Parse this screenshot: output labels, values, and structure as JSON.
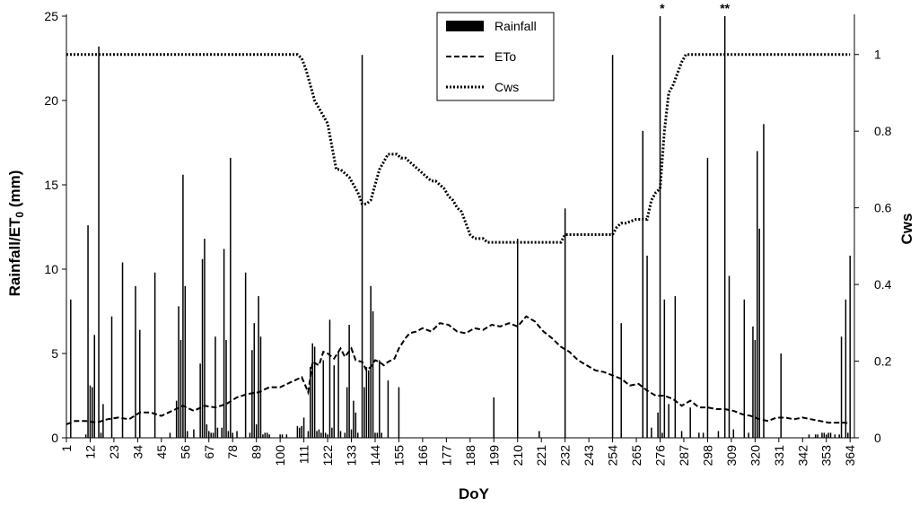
{
  "chart_data": {
    "type": "bar+line",
    "xlabel": "DoY",
    "ylabel_left": "Rainfall/ET",
    "ylabel_left_sub": "0",
    "ylabel_left_unit": " (mm)",
    "ylabel_right": "Cws",
    "xlim": [
      1,
      366
    ],
    "ylim_left": [
      0,
      25
    ],
    "ylim_right": [
      0,
      1.1
    ],
    "x_ticks": [
      "1",
      "12",
      "23",
      "34",
      "45",
      "56",
      "67",
      "78",
      "89",
      "100",
      "111",
      "122",
      "133",
      "144",
      "155",
      "166",
      "177",
      "188",
      "199",
      "210",
      "221",
      "232",
      "243",
      "254",
      "265",
      "276",
      "287",
      "298",
      "309",
      "320",
      "331",
      "342",
      "353",
      "364"
    ],
    "y_left_ticks": [
      "0",
      "5",
      "10",
      "15",
      "20",
      "25"
    ],
    "y_right_ticks": [
      "0",
      "0.2",
      "0.4",
      "0.6",
      "0.8",
      "1"
    ],
    "legend_position": "top-center",
    "legend": [
      "Rainfall",
      "ETo",
      "Cws"
    ],
    "annotations": [
      {
        "x": 277,
        "label": "*"
      },
      {
        "x": 306,
        "label": "**"
      }
    ],
    "rainfall": {
      "name": "Rainfall",
      "x": [
        3,
        10,
        11,
        12,
        13,
        14,
        16,
        17,
        18,
        22,
        27,
        33,
        35,
        42,
        49,
        52,
        53,
        54,
        55,
        56,
        57,
        60,
        63,
        64,
        65,
        66,
        67,
        68,
        69,
        70,
        71,
        73,
        74,
        75,
        76,
        77,
        78,
        80,
        84,
        86,
        87,
        88,
        89,
        90,
        91,
        92,
        93,
        94,
        95,
        100,
        101,
        103,
        108,
        109,
        110,
        111,
        113,
        114,
        115,
        116,
        117,
        118,
        119,
        120,
        121,
        122,
        123,
        124,
        125,
        127,
        128,
        130,
        131,
        132,
        133,
        134,
        135,
        136,
        138,
        139,
        140,
        141,
        142,
        143,
        144,
        145,
        146,
        147,
        150,
        155,
        199,
        210,
        220,
        232,
        254,
        258,
        268,
        270,
        272,
        275,
        276,
        277,
        278,
        280,
        283,
        286,
        290,
        294,
        296,
        298,
        303,
        306,
        308,
        310,
        315,
        317,
        319,
        320,
        321,
        322,
        324,
        332,
        345,
        348,
        349,
        351,
        352,
        353,
        354,
        355,
        357,
        359,
        360,
        362,
        363,
        364
      ],
      "values": [
        8.2,
        0.2,
        12.6,
        3.1,
        3.0,
        6.1,
        23.2,
        0.3,
        2.0,
        7.2,
        10.4,
        9.0,
        6.4,
        9.8,
        0.3,
        2.2,
        7.8,
        5.8,
        15.6,
        9.0,
        0.4,
        0.5,
        4.4,
        10.6,
        11.8,
        0.8,
        0.4,
        0.3,
        0.3,
        6.0,
        0.6,
        0.6,
        11.2,
        5.8,
        0.4,
        16.6,
        0.3,
        0.4,
        9.8,
        0.3,
        5.2,
        6.8,
        0.8,
        8.4,
        6.0,
        0.2,
        0.3,
        0.3,
        0.2,
        0.2,
        0.2,
        0.2,
        0.7,
        0.6,
        0.7,
        1.2,
        0.4,
        4.2,
        5.6,
        5.4,
        0.4,
        0.5,
        0.3,
        4.6,
        0.3,
        0.2,
        7.0,
        0.6,
        4.3,
        5.1,
        0.4,
        0.3,
        3.0,
        6.7,
        0.5,
        2.2,
        1.5,
        0.3,
        22.7,
        3.0,
        4.2,
        4.0,
        9.0,
        7.5,
        0.3,
        0.3,
        4.6,
        0.3,
        3.4,
        3.0,
        2.4,
        11.8,
        0.4,
        13.6,
        22.7,
        6.8,
        18.2,
        10.8,
        0.6,
        1.5,
        25.0,
        0.3,
        8.2,
        2.0,
        8.4,
        0.4,
        1.8,
        0.3,
        0.3,
        16.6,
        0.4,
        25.0,
        9.6,
        0.5,
        8.2,
        0.3,
        6.6,
        5.8,
        17.0,
        12.4,
        18.6,
        5.0,
        0.2,
        0.2,
        0.2,
        0.3,
        0.3,
        0.2,
        0.3,
        0.3,
        0.2,
        0.2,
        6.0,
        8.2,
        0.3,
        10.8
      ]
    },
    "eto": {
      "name": "ETo",
      "x": [
        1,
        5,
        10,
        15,
        20,
        25,
        30,
        35,
        40,
        45,
        50,
        55,
        60,
        65,
        70,
        75,
        80,
        85,
        90,
        95,
        100,
        105,
        110,
        113,
        115,
        118,
        120,
        122,
        125,
        128,
        130,
        133,
        135,
        138,
        140,
        142,
        144,
        146,
        148,
        150,
        153,
        155,
        158,
        160,
        163,
        166,
        170,
        174,
        178,
        182,
        186,
        190,
        194,
        198,
        202,
        206,
        210,
        214,
        218,
        222,
        226,
        230,
        234,
        238,
        242,
        246,
        250,
        254,
        258,
        262,
        266,
        270,
        274,
        278,
        282,
        286,
        290,
        294,
        298,
        302,
        306,
        310,
        314,
        318,
        322,
        326,
        330,
        334,
        338,
        342,
        346,
        350,
        354,
        358,
        362,
        364
      ],
      "values": [
        0.8,
        1.0,
        1.0,
        0.9,
        1.1,
        1.2,
        1.1,
        1.5,
        1.5,
        1.3,
        1.6,
        1.9,
        1.6,
        1.9,
        1.8,
        2.0,
        2.4,
        2.6,
        2.7,
        3.0,
        3.0,
        3.3,
        3.6,
        2.7,
        4.5,
        4.3,
        5.1,
        5.0,
        4.7,
        5.3,
        4.8,
        5.3,
        4.6,
        4.5,
        4.0,
        4.2,
        4.6,
        4.5,
        4.3,
        4.5,
        4.7,
        5.3,
        5.9,
        6.2,
        6.3,
        6.5,
        6.3,
        6.8,
        6.7,
        6.3,
        6.2,
        6.5,
        6.4,
        6.7,
        6.6,
        6.8,
        6.6,
        7.2,
        6.9,
        6.3,
        5.9,
        5.4,
        5.1,
        4.6,
        4.3,
        4.0,
        3.9,
        3.7,
        3.5,
        3.1,
        3.2,
        2.8,
        2.5,
        2.5,
        2.3,
        1.9,
        2.2,
        1.8,
        1.8,
        1.7,
        1.7,
        1.6,
        1.4,
        1.3,
        1.1,
        1.0,
        1.2,
        1.2,
        1.1,
        1.2,
        1.1,
        1.0,
        0.9,
        0.9,
        0.9,
        0.8
      ]
    },
    "cws": {
      "name": "Cws",
      "x": [
        1,
        10,
        20,
        30,
        40,
        50,
        60,
        70,
        80,
        90,
        100,
        105,
        108,
        110,
        112,
        114,
        116,
        118,
        120,
        122,
        124,
        126,
        128,
        130,
        132,
        134,
        136,
        138,
        140,
        142,
        144,
        146,
        148,
        150,
        152,
        154,
        156,
        158,
        160,
        162,
        164,
        166,
        168,
        170,
        172,
        174,
        176,
        178,
        180,
        182,
        184,
        186,
        188,
        190,
        192,
        194,
        196,
        198,
        200,
        205,
        210,
        215,
        220,
        225,
        230,
        232,
        235,
        240,
        245,
        250,
        254,
        256,
        258,
        260,
        265,
        268,
        270,
        272,
        274,
        276,
        278,
        280,
        282,
        284,
        286,
        288,
        290,
        300,
        310,
        320,
        330,
        340,
        350,
        360,
        364
      ],
      "values": [
        1.0,
        1.0,
        1.0,
        1.0,
        1.0,
        1.0,
        1.0,
        1.0,
        1.0,
        1.0,
        1.0,
        1.0,
        1.0,
        0.99,
        0.96,
        0.92,
        0.88,
        0.86,
        0.84,
        0.82,
        0.76,
        0.7,
        0.7,
        0.69,
        0.68,
        0.66,
        0.64,
        0.61,
        0.61,
        0.62,
        0.66,
        0.7,
        0.72,
        0.74,
        0.74,
        0.74,
        0.73,
        0.73,
        0.72,
        0.71,
        0.7,
        0.69,
        0.68,
        0.67,
        0.67,
        0.66,
        0.65,
        0.63,
        0.62,
        0.6,
        0.59,
        0.56,
        0.53,
        0.52,
        0.52,
        0.52,
        0.51,
        0.51,
        0.51,
        0.51,
        0.51,
        0.51,
        0.51,
        0.51,
        0.51,
        0.53,
        0.53,
        0.53,
        0.53,
        0.53,
        0.53,
        0.55,
        0.56,
        0.56,
        0.57,
        0.57,
        0.57,
        0.62,
        0.64,
        0.65,
        0.8,
        0.9,
        0.92,
        0.95,
        0.98,
        1.0,
        1.0,
        1.0,
        1.0,
        1.0,
        1.0,
        1.0,
        1.0,
        1.0,
        1.0
      ]
    }
  }
}
